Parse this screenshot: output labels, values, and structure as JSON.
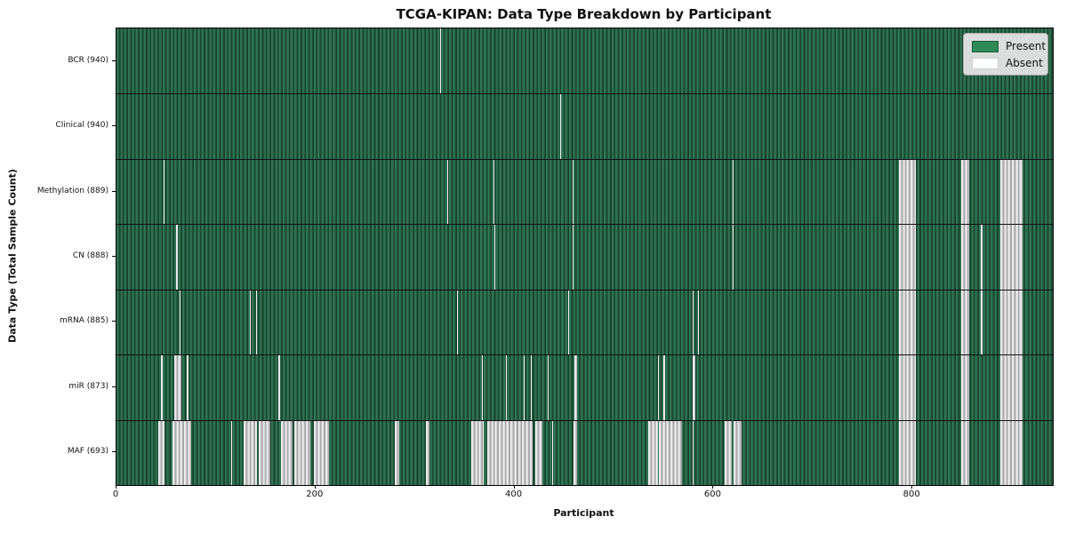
{
  "title": "TCGA-KIPAN: Data Type Breakdown by Participant",
  "axes": {
    "xlabel": "Participant",
    "ylabel": "Data Type (Total Sample Count)"
  },
  "legend": {
    "present_label": "Present",
    "absent_label": "Absent"
  },
  "colors": {
    "present_green": "#2e8b57",
    "present_dark_edge": "#143f29",
    "absent_white": "#f0f0f0",
    "absent_gray": "#9e9e9e",
    "legend_bg": "#e8e8e8",
    "axis_color": "#000000"
  },
  "chart_data": {
    "type": "heatmap",
    "title": "TCGA-KIPAN: Data Type Breakdown by Participant",
    "xlabel": "Participant",
    "ylabel": "Data Type (Total Sample Count)",
    "x_range": [
      0,
      941
    ],
    "x_ticks": [
      0,
      200,
      400,
      600,
      800
    ],
    "legend_entries": [
      "Present",
      "Absent"
    ],
    "legend_position": "upper right",
    "grid": "horizontal row separators",
    "cell_states": {
      "present": 1,
      "absent": 0
    },
    "rows": [
      {
        "label": "BCR (940)",
        "name": "BCR",
        "total_samples": 940,
        "absent_ranges": [
          [
            325,
            1
          ]
        ]
      },
      {
        "label": "Clinical (940)",
        "name": "Clinical",
        "total_samples": 940,
        "absent_ranges": [
          [
            446,
            1
          ]
        ]
      },
      {
        "label": "Methylation (889)",
        "name": "Methylation",
        "total_samples": 889,
        "absent_ranges": [
          [
            47,
            1
          ],
          [
            332,
            1
          ],
          [
            379,
            1
          ],
          [
            458,
            1
          ],
          [
            619,
            1
          ],
          [
            786,
            17
          ],
          [
            849,
            8
          ],
          [
            888,
            23
          ]
        ]
      },
      {
        "label": "CN (888)",
        "name": "CN",
        "total_samples": 888,
        "absent_ranges": [
          [
            60,
            2
          ],
          [
            380,
            1
          ],
          [
            458,
            1
          ],
          [
            619,
            1
          ],
          [
            786,
            17
          ],
          [
            849,
            8
          ],
          [
            869,
            1
          ],
          [
            888,
            23
          ]
        ]
      },
      {
        "label": "mRNA (885)",
        "name": "mRNA",
        "total_samples": 885,
        "absent_ranges": [
          [
            63,
            1
          ],
          [
            134,
            1
          ],
          [
            140,
            1
          ],
          [
            342,
            1
          ],
          [
            454,
            1
          ],
          [
            579,
            1
          ],
          [
            584,
            1
          ],
          [
            786,
            17
          ],
          [
            849,
            8
          ],
          [
            869,
            1
          ],
          [
            888,
            23
          ]
        ]
      },
      {
        "label": "miR (873)",
        "name": "miR",
        "total_samples": 873,
        "absent_ranges": [
          [
            45,
            1
          ],
          [
            58,
            7
          ],
          [
            71,
            1
          ],
          [
            163,
            1
          ],
          [
            367,
            1
          ],
          [
            391,
            1
          ],
          [
            409,
            1
          ],
          [
            416,
            1
          ],
          [
            433,
            1
          ],
          [
            460,
            3
          ],
          [
            544,
            1
          ],
          [
            550,
            1
          ],
          [
            579,
            3
          ],
          [
            786,
            17
          ],
          [
            849,
            8
          ],
          [
            888,
            23
          ]
        ]
      },
      {
        "label": "MAF (693)",
        "name": "MAF",
        "total_samples": 693,
        "absent_ranges": [
          [
            42,
            6
          ],
          [
            56,
            19
          ],
          [
            115,
            1
          ],
          [
            128,
            13
          ],
          [
            143,
            12
          ],
          [
            165,
            12
          ],
          [
            179,
            16
          ],
          [
            198,
            16
          ],
          [
            280,
            4
          ],
          [
            311,
            4
          ],
          [
            357,
            12
          ],
          [
            373,
            45
          ],
          [
            421,
            7
          ],
          [
            438,
            1
          ],
          [
            459,
            4
          ],
          [
            534,
            10
          ],
          [
            545,
            23
          ],
          [
            579,
            1
          ],
          [
            611,
            7
          ],
          [
            620,
            8
          ],
          [
            786,
            17
          ],
          [
            849,
            8
          ],
          [
            888,
            23
          ]
        ]
      }
    ]
  }
}
